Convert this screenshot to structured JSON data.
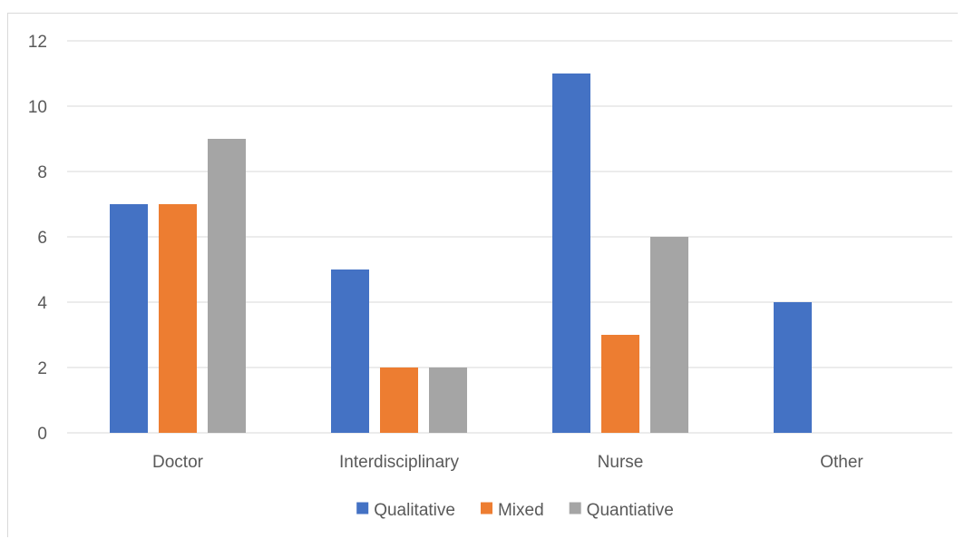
{
  "chart_data": {
    "type": "bar",
    "title": "",
    "xlabel": "",
    "ylabel": "",
    "categories": [
      "Doctor",
      "Interdisciplinary",
      "Nurse",
      "Other"
    ],
    "series": [
      {
        "name": "Qualitative",
        "color": "#4472C4",
        "values": [
          7,
          5,
          11,
          4
        ]
      },
      {
        "name": "Mixed",
        "color": "#ED7D31",
        "values": [
          7,
          2,
          3,
          0
        ]
      },
      {
        "name": "Quantiative",
        "color": "#A5A5A5",
        "values": [
          9,
          2,
          6,
          0
        ]
      }
    ],
    "ylim": [
      0,
      12
    ],
    "yticks": [
      0,
      2,
      4,
      6,
      8,
      10,
      12
    ],
    "grid": true,
    "legend_position": "bottom-center"
  }
}
